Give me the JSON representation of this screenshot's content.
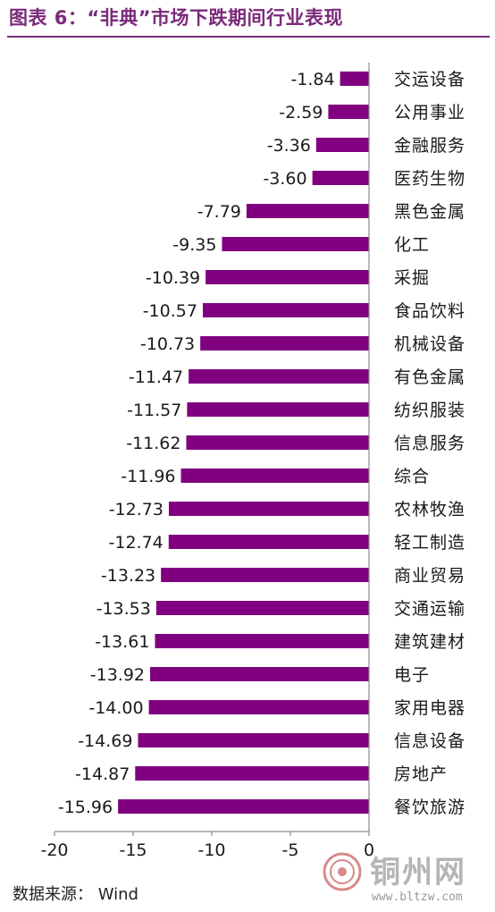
{
  "header": {
    "title": "图表 6：“非典”市场下跌期间行业表现"
  },
  "chart_data": {
    "type": "bar",
    "orientation": "horizontal",
    "categories": [
      "交运设备",
      "公用事业",
      "金融服务",
      "医药生物",
      "黑色金属",
      "化工",
      "采掘",
      "食品饮料",
      "机械设备",
      "有色金属",
      "纺织服装",
      "信息服务",
      "综合",
      "农林牧渔",
      "轻工制造",
      "商业贸易",
      "交通运输",
      "建筑建材",
      "电子",
      "家用电器",
      "信息设备",
      "房地产",
      "餐饮旅游"
    ],
    "values": [
      -1.84,
      -2.59,
      -3.36,
      -3.6,
      -7.79,
      -9.35,
      -10.39,
      -10.57,
      -10.73,
      -11.47,
      -11.57,
      -11.62,
      -11.96,
      -12.73,
      -12.74,
      -13.23,
      -13.53,
      -13.61,
      -13.92,
      -14.0,
      -14.69,
      -14.87,
      -15.96
    ],
    "value_labels": [
      "-1.84",
      "-2.59",
      "-3.36",
      "-3.60",
      "-7.79",
      "-9.35",
      "-10.39",
      "-10.57",
      "-10.73",
      "-11.47",
      "-11.57",
      "-11.62",
      "-11.96",
      "-12.73",
      "-12.74",
      "-13.23",
      "-13.53",
      "-13.61",
      "-13.92",
      "-14.00",
      "-14.69",
      "-14.87",
      "-15.96"
    ],
    "xticks": [
      -20,
      -15,
      -10,
      -5,
      0
    ],
    "xlim": [
      -20,
      0
    ],
    "bar_color": "#800080",
    "grid": false,
    "legend": "none"
  },
  "footer": {
    "source": "数据来源：  Wind"
  },
  "watermark": {
    "name": "铜州网",
    "url": "www.bltzw.com"
  }
}
